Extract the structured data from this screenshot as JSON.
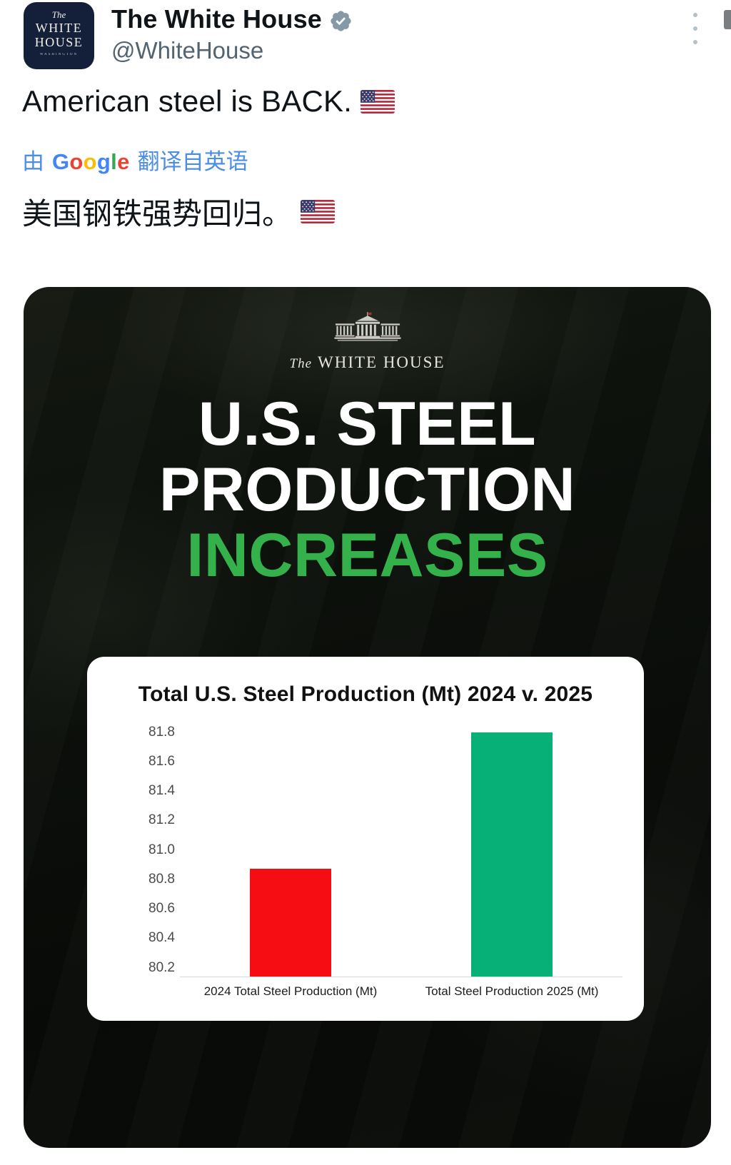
{
  "header": {
    "display_name": "The White House",
    "handle": "@WhiteHouse",
    "verified_badge_color": "#8699a6",
    "avatar": {
      "line1": "The",
      "line2": "WHITE",
      "line3": "HOUSE",
      "line4": "WASHINGTON"
    }
  },
  "tweet": {
    "text": "American steel is BACK.",
    "flag_icon": "us-flag-icon",
    "translated_text": "美国钢铁强势回归。"
  },
  "translate": {
    "prefix": "由",
    "suffix": "翻译自英语",
    "google_letters": [
      {
        "ch": "G",
        "color": "#4285F4"
      },
      {
        "ch": "o",
        "color": "#EA4335"
      },
      {
        "ch": "o",
        "color": "#FBBC05"
      },
      {
        "ch": "g",
        "color": "#4285F4"
      },
      {
        "ch": "l",
        "color": "#34A853"
      },
      {
        "ch": "e",
        "color": "#EA4335"
      }
    ],
    "text_color": "#4c8ee4"
  },
  "media": {
    "logo_the": "The",
    "logo_name": "WHITE HOUSE",
    "headline1": "U.S. STEEL",
    "headline2": "PRODUCTION",
    "headline3": "INCREASES",
    "headline_accent_color": "#35b14b"
  },
  "chart_data": {
    "type": "bar",
    "title": "Total U.S. Steel Production (Mt) 2024 v. 2025",
    "categories": [
      "2024 Total Steel Production (Mt)",
      "Total Steel Production 2025 (Mt)"
    ],
    "values": [
      80.87,
      81.8
    ],
    "colors": [
      "#f50d13",
      "#07b076"
    ],
    "yticks": [
      80.2,
      80.4,
      80.6,
      80.8,
      81.0,
      81.2,
      81.4,
      81.6,
      81.8
    ],
    "ylim": [
      80.14,
      81.9
    ],
    "xlabel": "",
    "ylabel": "",
    "grid": false,
    "legend": false,
    "background": "#ffffff"
  }
}
